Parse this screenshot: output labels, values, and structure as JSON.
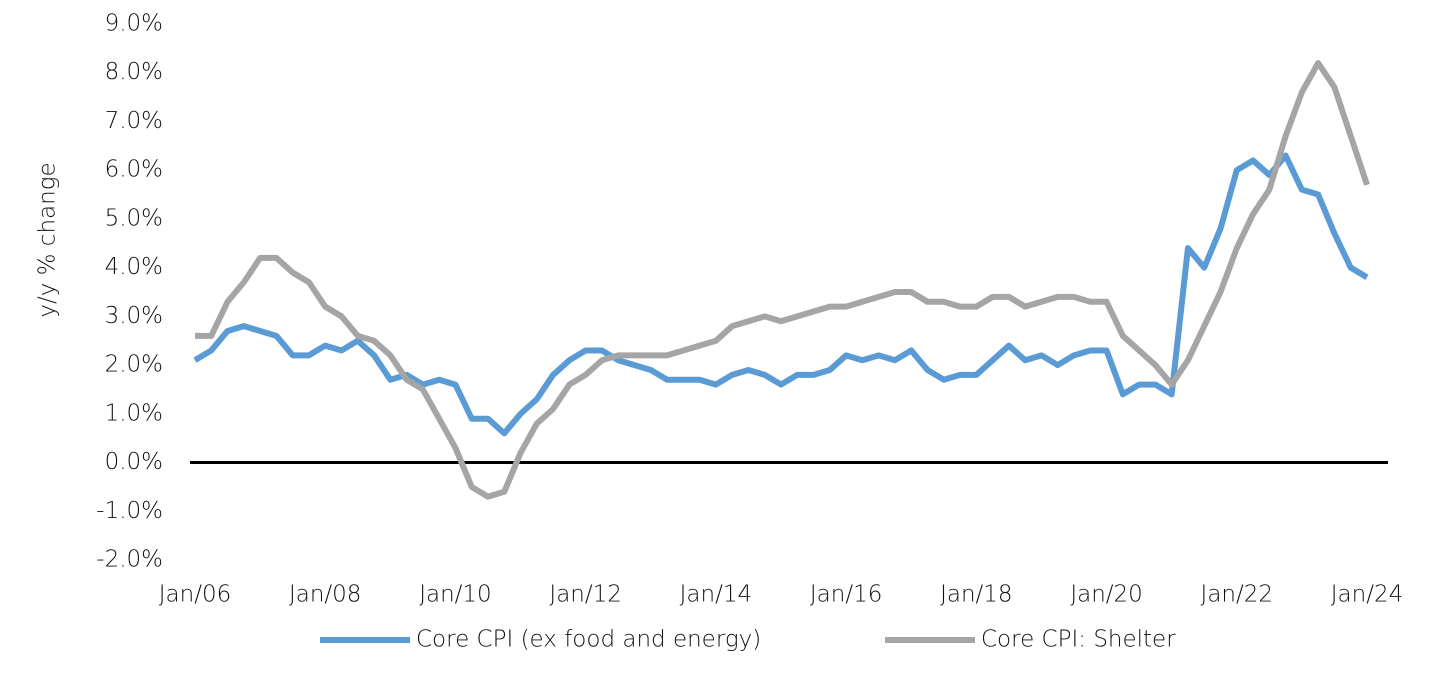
{
  "chart_data": {
    "type": "line",
    "y_label": "y/y % change",
    "categories": [
      "Jan/06",
      null,
      null,
      null,
      null,
      null,
      null,
      null,
      "Jan/08",
      null,
      null,
      null,
      null,
      null,
      null,
      null,
      "Jan/10",
      null,
      null,
      null,
      null,
      null,
      null,
      null,
      "Jan/12",
      null,
      null,
      null,
      null,
      null,
      null,
      null,
      "Jan/14",
      null,
      null,
      null,
      null,
      null,
      null,
      null,
      "Jan/16",
      null,
      null,
      null,
      null,
      null,
      null,
      null,
      "Jan/18",
      null,
      null,
      null,
      null,
      null,
      null,
      null,
      "Jan/20",
      null,
      null,
      null,
      null,
      null,
      null,
      null,
      "Jan/22",
      null,
      null,
      null,
      null,
      null,
      null,
      null,
      "Jan/24"
    ],
    "series": [
      {
        "name": "Core CPI (ex food and energy)",
        "color": "#5b9bd5",
        "values": [
          2.1,
          2.3,
          2.7,
          2.8,
          2.7,
          2.6,
          2.2,
          2.2,
          2.4,
          2.3,
          2.5,
          2.2,
          1.7,
          1.8,
          1.6,
          1.7,
          1.6,
          0.9,
          0.9,
          0.6,
          1.0,
          1.3,
          1.8,
          2.1,
          2.3,
          2.3,
          2.1,
          2.0,
          1.9,
          1.7,
          1.7,
          1.7,
          1.6,
          1.8,
          1.9,
          1.8,
          1.6,
          1.8,
          1.8,
          1.9,
          2.2,
          2.1,
          2.2,
          2.1,
          2.3,
          1.9,
          1.7,
          1.8,
          1.8,
          2.1,
          2.4,
          2.1,
          2.2,
          2.0,
          2.2,
          2.3,
          2.3,
          1.4,
          1.6,
          1.6,
          1.4,
          4.4,
          4.0,
          4.8,
          6.0,
          6.2,
          5.9,
          6.3,
          5.6,
          5.5,
          4.7,
          4.0,
          3.8
        ]
      },
      {
        "name": "Core CPI: Shelter",
        "color": "#a5a5a5",
        "values": [
          2.6,
          2.6,
          3.3,
          3.7,
          4.2,
          4.2,
          3.9,
          3.7,
          3.2,
          3.0,
          2.6,
          2.5,
          2.2,
          1.7,
          1.5,
          0.9,
          0.3,
          -0.5,
          -0.7,
          -0.6,
          0.2,
          0.8,
          1.1,
          1.6,
          1.8,
          2.1,
          2.2,
          2.2,
          2.2,
          2.2,
          2.3,
          2.4,
          2.5,
          2.8,
          2.9,
          3.0,
          2.9,
          3.0,
          3.1,
          3.2,
          3.2,
          3.3,
          3.4,
          3.5,
          3.5,
          3.3,
          3.3,
          3.2,
          3.2,
          3.4,
          3.4,
          3.2,
          3.3,
          3.4,
          3.4,
          3.3,
          3.3,
          2.6,
          2.3,
          2.0,
          1.6,
          2.1,
          2.8,
          3.5,
          4.4,
          5.1,
          5.6,
          6.7,
          7.6,
          8.2,
          7.7,
          6.7,
          5.7
        ]
      }
    ],
    "ylim": [
      -2,
      9
    ],
    "yticks": [
      {
        "value": -2,
        "label": "-2.0%"
      },
      {
        "value": -1,
        "label": "-1.0%"
      },
      {
        "value": 0,
        "label": "0.0%"
      },
      {
        "value": 1,
        "label": "1.0%"
      },
      {
        "value": 2,
        "label": "2.0%"
      },
      {
        "value": 3,
        "label": "3.0%"
      },
      {
        "value": 4,
        "label": "4.0%"
      },
      {
        "value": 5,
        "label": "5.0%"
      },
      {
        "value": 6,
        "label": "6.0%"
      },
      {
        "value": 7,
        "label": "7.0%"
      },
      {
        "value": 8,
        "label": "8.0%"
      },
      {
        "value": 9,
        "label": "9.0%"
      }
    ],
    "grid": false,
    "legend": "bottom"
  }
}
